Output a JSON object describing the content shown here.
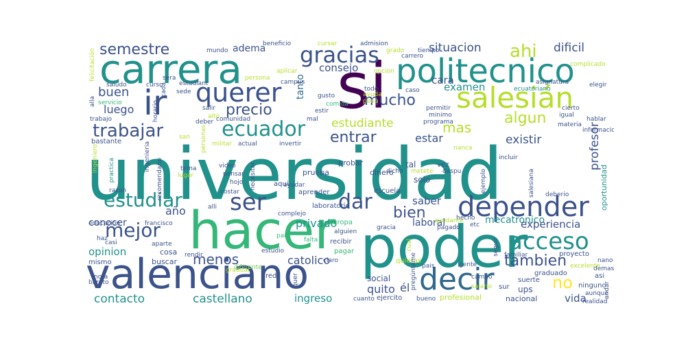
{
  "palette": {
    "dark_purple": "#440154",
    "indigo": "#3b528b",
    "blue": "#31688e",
    "teal": "#21918c",
    "sea": "#1f9e89",
    "green": "#35b779",
    "lime": "#6ece58",
    "yellow_green": "#b5de2b",
    "yellow": "#fde725"
  },
  "words": [
    {
      "text": "universidad",
      "color": "teal"
    },
    {
      "text": "si",
      "color": "dark_purple"
    },
    {
      "text": "hacer",
      "color": "green"
    },
    {
      "text": "poder",
      "color": "teal"
    },
    {
      "text": "valenciano",
      "color": "indigo"
    },
    {
      "text": "carrera",
      "color": "teal"
    },
    {
      "text": "politecnico",
      "color": "teal"
    },
    {
      "text": "ir",
      "color": "indigo"
    },
    {
      "text": "querer",
      "color": "indigo"
    },
    {
      "text": "salesián",
      "color": "yellow_green"
    },
    {
      "text": "decir",
      "color": "blue"
    },
    {
      "text": "depender",
      "color": "indigo"
    },
    {
      "text": "acceso",
      "color": "teal"
    },
    {
      "text": "gracias",
      "color": "indigo"
    },
    {
      "text": "ecuador",
      "color": "teal"
    },
    {
      "text": "trabajar",
      "color": "indigo"
    },
    {
      "text": "estudiar",
      "color": "teal"
    },
    {
      "text": "ser",
      "color": "indigo"
    },
    {
      "text": "dar",
      "color": "indigo"
    },
    {
      "text": "mejor",
      "color": "indigo"
    },
    {
      "text": "semestre",
      "color": "indigo"
    },
    {
      "text": "precio",
      "color": "indigo"
    },
    {
      "text": "ahi",
      "color": "yellow_green"
    },
    {
      "text": "mucho",
      "color": "indigo"
    },
    {
      "text": "algun",
      "color": "yellow_green"
    },
    {
      "text": "entrar",
      "color": "indigo"
    },
    {
      "text": "tambien",
      "color": "indigo"
    },
    {
      "text": "bien",
      "color": "indigo"
    },
    {
      "text": "menos",
      "color": "indigo"
    },
    {
      "text": "no",
      "color": "yellow"
    },
    {
      "text": "buen",
      "color": "indigo"
    },
    {
      "text": "luego",
      "color": "indigo"
    },
    {
      "text": "consejo",
      "color": "indigo"
    },
    {
      "text": "situacion",
      "color": "indigo"
    },
    {
      "text": "dificil",
      "color": "indigo"
    },
    {
      "text": "mas",
      "color": "yellow_green"
    },
    {
      "text": "tanto",
      "color": "blue"
    },
    {
      "text": "estudiante",
      "color": "yellow_green"
    },
    {
      "text": "estar",
      "color": "indigo"
    },
    {
      "text": "existir",
      "color": "indigo"
    },
    {
      "text": "profesor",
      "color": "indigo"
    },
    {
      "text": "examen",
      "color": "teal"
    },
    {
      "text": "cara",
      "color": "indigo"
    },
    {
      "text": "adema",
      "color": "indigo"
    },
    {
      "text": "año",
      "color": "indigo"
    },
    {
      "text": "privado",
      "color": "teal"
    },
    {
      "text": "saber",
      "color": "indigo"
    },
    {
      "text": "mecatronico",
      "color": "teal"
    },
    {
      "text": "experiencia",
      "color": "indigo"
    },
    {
      "text": "conocer",
      "color": "indigo"
    },
    {
      "text": "laboral",
      "color": "indigo"
    },
    {
      "text": "opinion",
      "color": "teal"
    },
    {
      "text": "catolico",
      "color": "indigo"
    },
    {
      "text": "quito",
      "color": "indigo"
    },
    {
      "text": "él",
      "color": "indigo"
    },
    {
      "text": "contacto",
      "color": "teal"
    },
    {
      "text": "castellano",
      "color": "teal"
    },
    {
      "text": "ingreso",
      "color": "teal"
    },
    {
      "text": "vida",
      "color": "indigo"
    },
    {
      "text": "social",
      "color": "indigo"
    },
    {
      "text": "ups",
      "color": "indigo"
    },
    {
      "text": "oportunidad",
      "color": "teal"
    },
    {
      "text": "tal",
      "color": "indigo"
    },
    {
      "text": "solo",
      "color": "indigo"
    },
    {
      "text": "dinero",
      "color": "indigo"
    },
    {
      "text": "probar",
      "color": "indigo"
    },
    {
      "text": "prueba",
      "color": "indigo"
    },
    {
      "text": "aqui",
      "color": "indigo"
    },
    {
      "text": "escuela",
      "color": "indigo"
    },
    {
      "text": "aprender",
      "color": "indigo"
    },
    {
      "text": "laboratorio",
      "color": "indigo"
    },
    {
      "text": "complejo",
      "color": "indigo"
    },
    {
      "text": "europa",
      "color": "green"
    },
    {
      "text": "alguien",
      "color": "indigo"
    },
    {
      "text": "recibir",
      "color": "indigo"
    },
    {
      "text": "pagar",
      "color": "green"
    },
    {
      "text": "claro",
      "color": "indigo"
    },
    {
      "text": "cosa",
      "color": "indigo"
    },
    {
      "text": "buscar",
      "color": "indigo"
    },
    {
      "text": "mismo",
      "color": "indigo"
    },
    {
      "text": "educacion",
      "color": "indigo"
    },
    {
      "text": "francisco",
      "color": "indigo"
    },
    {
      "text": "haz",
      "color": "indigo"
    },
    {
      "text": "casi",
      "color": "indigo"
    },
    {
      "text": "aparte",
      "color": "indigo"
    },
    {
      "text": "rendir",
      "color": "indigo"
    },
    {
      "text": "diferente",
      "color": "lime"
    },
    {
      "text": "estudio",
      "color": "indigo"
    },
    {
      "text": "país",
      "color": "green"
    },
    {
      "text": "falta",
      "color": "green"
    },
    {
      "text": "graduar",
      "color": "yellow_green"
    },
    {
      "text": "red",
      "color": "indigo"
    },
    {
      "text": "quieras",
      "color": "yellow_green"
    },
    {
      "text": "pais",
      "color": "indigo"
    },
    {
      "text": "gente",
      "color": "indigo"
    },
    {
      "text": "familiar",
      "color": "indigo"
    },
    {
      "text": "proyecto",
      "color": "indigo"
    },
    {
      "text": "nano",
      "color": "indigo"
    },
    {
      "text": "asi",
      "color": "indigo"
    },
    {
      "text": "graduado",
      "color": "indigo"
    },
    {
      "text": "ninguno",
      "color": "indigo"
    },
    {
      "text": "aunque",
      "color": "indigo"
    },
    {
      "text": "realidad",
      "color": "indigo"
    },
    {
      "text": "cuanto",
      "color": "indigo"
    },
    {
      "text": "ejercito",
      "color": "indigo"
    },
    {
      "text": "bueno",
      "color": "indigo"
    },
    {
      "text": "profesional",
      "color": "yellow_green"
    },
    {
      "text": "nacional",
      "color": "indigo"
    },
    {
      "text": "suerte",
      "color": "indigo"
    },
    {
      "text": "sur",
      "color": "indigo"
    },
    {
      "text": "campo",
      "color": "indigo"
    },
    {
      "text": "salario",
      "color": "yellow_green"
    },
    {
      "text": "excelente",
      "color": "yellow_green"
    },
    {
      "text": "demas",
      "color": "indigo"
    },
    {
      "text": "deberio",
      "color": "indigo"
    },
    {
      "text": "pagado",
      "color": "indigo"
    },
    {
      "text": "ayudante",
      "color": "yellow_green"
    },
    {
      "text": "hecho",
      "color": "indigo"
    },
    {
      "text": "etc",
      "color": "indigo"
    },
    {
      "text": "ejemplo",
      "color": "indigo"
    },
    {
      "text": "incluir",
      "color": "indigo"
    },
    {
      "text": "salesiana",
      "color": "indigo"
    },
    {
      "text": "despu",
      "color": "indigo"
    },
    {
      "text": "vez",
      "color": "indigo"
    },
    {
      "text": "dicho",
      "color": "indigo"
    },
    {
      "text": "metete",
      "color": "yellow_green"
    },
    {
      "text": "necesitar",
      "color": "indigo"
    },
    {
      "text": "invertir",
      "color": "indigo"
    },
    {
      "text": "actual",
      "color": "indigo"
    },
    {
      "text": "militar",
      "color": "yellow_green"
    },
    {
      "text": "personas",
      "color": "yellow_green"
    },
    {
      "text": "san",
      "color": "yellow_green"
    },
    {
      "text": "video",
      "color": "indigo"
    },
    {
      "text": "tema",
      "color": "indigo"
    },
    {
      "text": "lugar",
      "color": "yellow_green"
    },
    {
      "text": "pensar",
      "color": "indigo"
    },
    {
      "text": "hojo",
      "color": "indigo"
    },
    {
      "text": "costar",
      "color": "indigo"
    },
    {
      "text": "alli",
      "color": "indigo"
    },
    {
      "text": "recomendario",
      "color": "indigo"
    },
    {
      "text": "ayudar",
      "color": "indigo"
    },
    {
      "text": "ingenieria",
      "color": "indigo"
    },
    {
      "text": "ingeniero",
      "color": "yellow_green"
    },
    {
      "text": "practica",
      "color": "teal"
    },
    {
      "text": "razon",
      "color": "indigo"
    },
    {
      "text": "bastante",
      "color": "indigo"
    },
    {
      "text": "trabajo",
      "color": "indigo"
    },
    {
      "text": "servicio",
      "color": "green"
    },
    {
      "text": "saludo",
      "color": "indigo"
    },
    {
      "text": "sera",
      "color": "indigo"
    },
    {
      "text": "curso",
      "color": "indigo"
    },
    {
      "text": "cada",
      "color": "indigo"
    },
    {
      "text": "horario",
      "color": "indigo"
    },
    {
      "text": "alla",
      "color": "indigo"
    },
    {
      "text": "felicitación",
      "color": "yellow_green"
    },
    {
      "text": "estudiant",
      "color": "indigo"
    },
    {
      "text": "sede",
      "color": "indigo"
    },
    {
      "text": "salir",
      "color": "indigo"
    },
    {
      "text": "alto",
      "color": "yellow_green"
    },
    {
      "text": "deber",
      "color": "indigo"
    },
    {
      "text": "comunidad",
      "color": "indigo"
    },
    {
      "text": "persona",
      "color": "yellow_green"
    },
    {
      "text": "mundo",
      "color": "indigo"
    },
    {
      "text": "beneficio",
      "color": "indigo"
    },
    {
      "text": "cursar",
      "color": "yellow_green"
    },
    {
      "text": "admision",
      "color": "indigo"
    },
    {
      "text": "grado",
      "color": "yellow_green"
    },
    {
      "text": "carrero",
      "color": "indigo"
    },
    {
      "text": "tiempo",
      "color": "indigo"
    },
    {
      "text": "aplicar",
      "color": "yellow_green"
    },
    {
      "text": "opcion",
      "color": "yellow_green"
    },
    {
      "text": "campus",
      "color": "indigo"
    },
    {
      "text": "gusto",
      "color": "indigo"
    },
    {
      "text": "ayuda",
      "color": "yellow_green"
    },
    {
      "text": "pena",
      "color": "yellow_green"
    },
    {
      "text": "comida",
      "color": "green"
    },
    {
      "text": "todo",
      "color": "indigo"
    },
    {
      "text": "caso",
      "color": "indigo"
    },
    {
      "text": "estir",
      "color": "indigo"
    },
    {
      "text": "mal",
      "color": "indigo"
    },
    {
      "text": "permitir",
      "color": "indigo"
    },
    {
      "text": "minimo",
      "color": "indigo"
    },
    {
      "text": "programa",
      "color": "indigo"
    },
    {
      "text": "asignatura",
      "color": "indigo"
    },
    {
      "text": "ecuatoriano",
      "color": "teal"
    },
    {
      "text": "cierto",
      "color": "indigo"
    },
    {
      "text": "igual",
      "color": "indigo"
    },
    {
      "text": "elegir",
      "color": "indigo"
    },
    {
      "text": "complicado",
      "color": "yellow_green"
    },
    {
      "text": "hablar",
      "color": "indigo"
    },
    {
      "text": "informacion",
      "color": "indigo"
    },
    {
      "text": "materia",
      "color": "indigo"
    },
    {
      "text": "gracia",
      "color": "indigo"
    },
    {
      "text": "pregúntame",
      "color": "indigo"
    },
    {
      "text": "cual",
      "color": "yellow_green"
    },
    {
      "text": "seguir",
      "color": "indigo"
    },
    {
      "text": "andar",
      "color": "indigo"
    },
    {
      "text": "quer",
      "color": "indigo"
    },
    {
      "text": "nota",
      "color": "indigo"
    },
    {
      "text": "barato",
      "color": "indigo"
    },
    {
      "text": "nanca",
      "color": "yellow_green"
    }
  ]
}
